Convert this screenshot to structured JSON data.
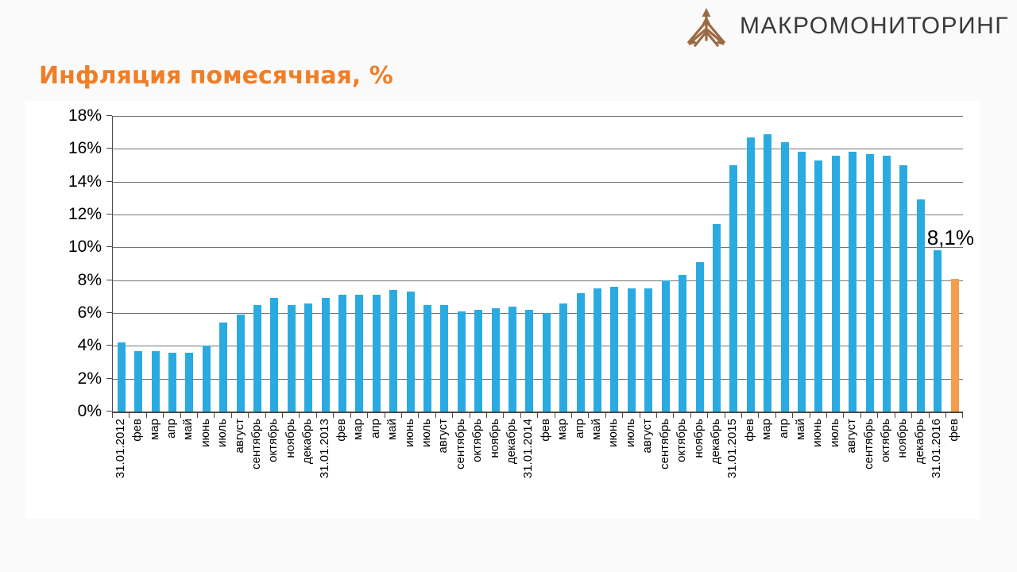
{
  "header": {
    "logo_text": "МАКРОМОНИТОРИНГ"
  },
  "title": "Инфляция помесячная, %",
  "annotation": {
    "last_value_label": "8,1%"
  },
  "colors": {
    "bar": "#29abe2",
    "bar_highlight": "#f49d4a",
    "title": "#f07e26",
    "logo_brown": "#9b6a45",
    "grid": "#757575",
    "axis": "#4a4a4a",
    "background": "#fafafa",
    "panel": "#ffffff"
  },
  "chart_data": {
    "type": "bar",
    "title": "Инфляция помесячная, %",
    "xlabel": "",
    "ylabel": "",
    "ylim": [
      0,
      18
    ],
    "ytick_step": 2,
    "yticks": [
      "0%",
      "2%",
      "4%",
      "6%",
      "8%",
      "10%",
      "12%",
      "14%",
      "16%",
      "18%"
    ],
    "grid": true,
    "legend": "none",
    "highlight_last": true,
    "categories": [
      "31.01.2012",
      "фев",
      "мар",
      "апр",
      "май",
      "июнь",
      "июль",
      "август",
      "сентябрь",
      "октябрь",
      "ноябрь",
      "декабрь",
      "31.01.2013",
      "фев",
      "мар",
      "апр",
      "май",
      "июнь",
      "июль",
      "август",
      "сентябрь",
      "октябрь",
      "ноябрь",
      "декабрь",
      "31.01.2014",
      "фев",
      "мар",
      "апр",
      "май",
      "июнь",
      "июль",
      "август",
      "сентябрь",
      "октябрь",
      "ноябрь",
      "декабрь",
      "31.01.2015",
      "фев",
      "мар",
      "апр",
      "май",
      "июнь",
      "июль",
      "август",
      "сентябрь",
      "октябрь",
      "ноябрь",
      "декабрь",
      "31.01.2016",
      "фев"
    ],
    "values": [
      4.2,
      3.7,
      3.7,
      3.6,
      3.6,
      4.0,
      5.4,
      5.9,
      6.5,
      6.9,
      6.5,
      6.6,
      6.9,
      7.1,
      7.1,
      7.1,
      7.4,
      7.3,
      6.5,
      6.5,
      6.1,
      6.2,
      6.3,
      6.4,
      6.2,
      6.0,
      6.6,
      7.2,
      7.5,
      7.6,
      7.5,
      7.5,
      8.0,
      8.3,
      9.1,
      11.4,
      15.0,
      16.7,
      16.9,
      16.4,
      15.8,
      15.3,
      15.6,
      15.8,
      15.7,
      15.6,
      15.0,
      12.9,
      9.8,
      8.1
    ]
  }
}
